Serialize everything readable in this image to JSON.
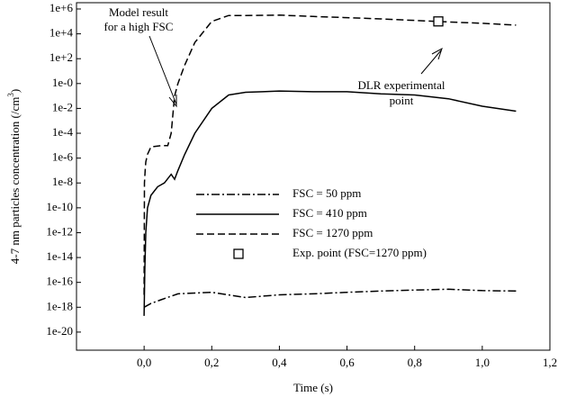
{
  "chart_data": {
    "type": "line",
    "log_y": true,
    "x_label": "Time (s)",
    "y_label": [
      "4-7 nm particles concentration (/cm",
      "3",
      ")"
    ],
    "xlim": [
      -0.2,
      1.2
    ],
    "xticks": [
      {
        "value": 0,
        "label": "0,0"
      },
      {
        "value": 0.2,
        "label": "0,2"
      },
      {
        "value": 0.4,
        "label": "0,4"
      },
      {
        "value": 0.6,
        "label": "0,6"
      },
      {
        "value": 0.8,
        "label": "0,8"
      },
      {
        "value": 1.0,
        "label": "1,0"
      },
      {
        "value": 1.2,
        "label": "1,2"
      }
    ],
    "ylim": [
      3.5e-22,
      3200000.0
    ],
    "yticks": [
      {
        "value": 1000000.0,
        "label": "1e+6"
      },
      {
        "value": 10000.0,
        "label": "1e+4"
      },
      {
        "value": 100.0,
        "label": "1e+2"
      },
      {
        "value": 1,
        "label": "1e-0"
      },
      {
        "value": 0.01,
        "label": "1e-2"
      },
      {
        "value": 0.0001,
        "label": "1e-4"
      },
      {
        "value": 1e-06,
        "label": "1e-6"
      },
      {
        "value": 1e-08,
        "label": "1e-8"
      },
      {
        "value": 1e-10,
        "label": "1e-10"
      },
      {
        "value": 1e-12,
        "label": "1e-12"
      },
      {
        "value": 1e-14,
        "label": "1e-14"
      },
      {
        "value": 1e-16,
        "label": "1e-16"
      },
      {
        "value": 1e-18,
        "label": "1e-18"
      },
      {
        "value": 1e-20,
        "label": "1e-20"
      }
    ],
    "series": [
      {
        "name": "FSC = 50 ppm",
        "color": "#000000",
        "dash": "dashdot",
        "x": [
          0,
          0.02,
          0.05,
          0.1,
          0.2,
          0.3,
          0.4,
          0.5,
          0.6,
          0.7,
          0.8,
          0.9,
          1.0,
          1.1
        ],
        "values": [
          1e-18,
          2e-18,
          4e-18,
          1.2e-17,
          1.6e-17,
          6e-18,
          1e-17,
          1.2e-17,
          1.6e-17,
          2e-17,
          2.4e-17,
          2.8e-17,
          2.2e-17,
          2e-17
        ]
      },
      {
        "name": "FSC = 410 ppm",
        "color": "#000000",
        "dash": "solid",
        "x": [
          0,
          0.002,
          0.005,
          0.01,
          0.02,
          0.04,
          0.06,
          0.08,
          0.09,
          0.1,
          0.12,
          0.15,
          0.2,
          0.25,
          0.3,
          0.35,
          0.4,
          0.5,
          0.6,
          0.7,
          0.8,
          0.9,
          1.0,
          1.1
        ],
        "values": [
          2e-19,
          1e-15,
          1e-12,
          1e-10,
          1e-09,
          5e-09,
          1e-08,
          5e-08,
          2e-08,
          1e-07,
          2e-06,
          0.0001,
          0.01,
          0.12,
          0.2,
          0.22,
          0.25,
          0.22,
          0.22,
          0.15,
          0.12,
          0.06,
          0.015,
          0.006
        ]
      },
      {
        "name": "FSC = 1270 ppm",
        "color": "#000000",
        "dash": "dashed",
        "x": [
          0,
          0.001,
          0.003,
          0.005,
          0.01,
          0.02,
          0.05,
          0.07,
          0.08,
          0.09,
          0.1,
          0.12,
          0.15,
          0.2,
          0.25,
          0.3,
          0.4,
          0.5,
          0.6,
          0.7,
          0.8,
          0.9,
          1.0,
          1.1
        ],
        "values": [
          1e-17,
          1e-08,
          1e-07,
          5e-07,
          2e-06,
          8e-06,
          1e-05,
          1e-05,
          0.0001,
          0.1,
          1,
          30,
          2000.0,
          100000.0,
          300000.0,
          300000.0,
          320000.0,
          250000.0,
          200000.0,
          160000.0,
          120000.0,
          90000.0,
          70000.0,
          50000.0
        ]
      },
      {
        "name": "Exp. point (FSC=1270 ppm)",
        "color": "#000000",
        "marker": "square",
        "x": [
          0.87
        ],
        "values": [
          100000.0
        ]
      }
    ],
    "annotations": [
      {
        "lines": [
          "Model result",
          "for a high FSC"
        ],
        "x": 0.09,
        "y": 0.1
      },
      {
        "lines": [
          "DLR experimental",
          "point"
        ],
        "x": 0.87,
        "y": 100000.0
      }
    ]
  }
}
